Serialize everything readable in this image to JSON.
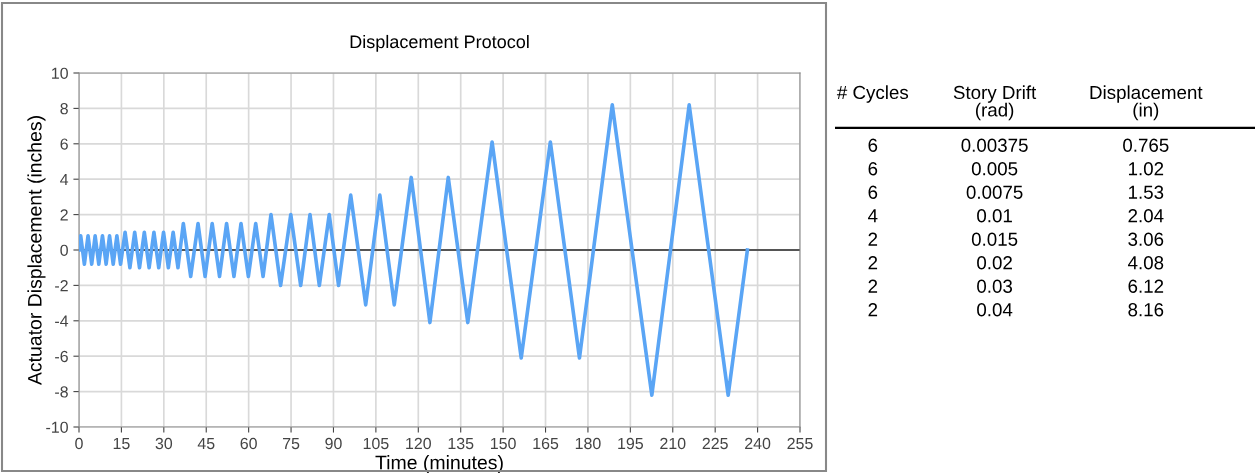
{
  "chart_data": [
    {
      "type": "line",
      "title": "Displacement Protocol",
      "xlabel": "Time (minutes)",
      "ylabel": "Actuator Displacement (inches)",
      "xlim": [
        0,
        255
      ],
      "xticks": [
        0,
        15,
        30,
        45,
        60,
        75,
        90,
        105,
        120,
        135,
        150,
        165,
        180,
        195,
        210,
        225,
        240,
        255
      ],
      "ylim": [
        -10,
        10
      ],
      "yticks": [
        -10,
        -8,
        -6,
        -4,
        -2,
        0,
        2,
        4,
        6,
        8,
        10
      ],
      "grid": true,
      "marker": "none",
      "line_style": "solid",
      "ref_lines": [
        {
          "axis": "y",
          "value": 0,
          "color": "#555555"
        }
      ],
      "series": [
        {
          "color": "#5aa5f5",
          "x": [
            0,
            0.6,
            1.9,
            3.2,
            4.5,
            5.7,
            7.0,
            8.3,
            9.6,
            10.8,
            12.1,
            13.4,
            14.7,
            16.3,
            18.0,
            19.7,
            21.4,
            23.1,
            24.8,
            26.5,
            28.2,
            29.9,
            31.6,
            33.3,
            35.0,
            36.9,
            39.5,
            42.1,
            44.6,
            47.1,
            49.7,
            52.2,
            54.8,
            57.3,
            59.9,
            62.5,
            65.1,
            67.9,
            71.3,
            74.9,
            78.4,
            81.7,
            85.0,
            88.5,
            91.8,
            96.1,
            101.4,
            106.4,
            111.5,
            117.5,
            124.1,
            130.6,
            137.5,
            146.1,
            156.4,
            166.7,
            177.0,
            188.6,
            202.6,
            215.8,
            229.6,
            236.4
          ],
          "values": [
            0,
            0.8,
            -0.8,
            0.8,
            -0.8,
            0.8,
            -0.8,
            0.8,
            -0.8,
            0.8,
            -0.8,
            0.8,
            -0.8,
            1.0,
            -1.0,
            1.0,
            -1.0,
            1.0,
            -1.0,
            1.0,
            -1.0,
            1.0,
            -1.0,
            1.0,
            -1.0,
            1.5,
            -1.5,
            1.5,
            -1.5,
            1.5,
            -1.5,
            1.5,
            -1.5,
            1.5,
            -1.5,
            1.5,
            -1.5,
            2.0,
            -2.0,
            2.0,
            -2.0,
            2.0,
            -2.0,
            2.0,
            -2.0,
            3.1,
            -3.1,
            3.1,
            -3.1,
            4.1,
            -4.1,
            4.1,
            -4.1,
            6.1,
            -6.1,
            6.1,
            -6.1,
            8.2,
            -8.2,
            8.2,
            -8.2,
            0
          ]
        }
      ]
    },
    {
      "type": "other",
      "categories": [
        "# Cycles",
        "Story Drift\n(rad)",
        "Displacement\n(in)"
      ],
      "cell_labels": [
        [
          "6",
          "0.00375",
          "0.765"
        ],
        [
          "6",
          "0.005",
          "1.02"
        ],
        [
          "6",
          "0.0075",
          "1.53"
        ],
        [
          "4",
          "0.01",
          "2.04"
        ],
        [
          "2",
          "0.015",
          "3.06"
        ],
        [
          "2",
          "0.02",
          "4.08"
        ],
        [
          "2",
          "0.03",
          "6.12"
        ],
        [
          "2",
          "0.04",
          "8.16"
        ]
      ]
    }
  ]
}
